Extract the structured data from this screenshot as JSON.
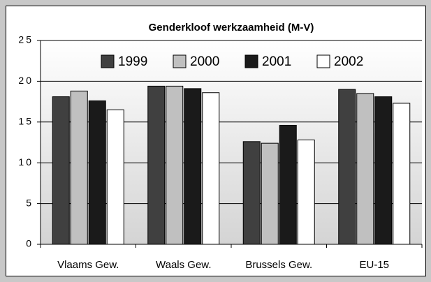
{
  "chart_data": {
    "type": "bar",
    "title": "Genderkloof werkzaamheid (M-V)",
    "categories": [
      "Vlaams Gew.",
      "Waals Gew.",
      "Brussels Gew.",
      "EU-15"
    ],
    "series": [
      {
        "name": "1999",
        "color": "#404040",
        "values": [
          18.1,
          19.4,
          12.6,
          19.0
        ]
      },
      {
        "name": "2000",
        "color": "#c0c0c0",
        "values": [
          18.8,
          19.4,
          12.4,
          18.5
        ]
      },
      {
        "name": "2001",
        "color": "#1a1a1a",
        "values": [
          17.6,
          19.1,
          14.6,
          18.1
        ]
      },
      {
        "name": "2002",
        "color": "#ffffff",
        "values": [
          16.5,
          18.6,
          12.8,
          17.3
        ]
      }
    ],
    "ylim": [
      0,
      25
    ],
    "yticks": [
      0,
      5,
      10,
      15,
      20,
      25
    ],
    "grid": true,
    "legend": "top"
  }
}
